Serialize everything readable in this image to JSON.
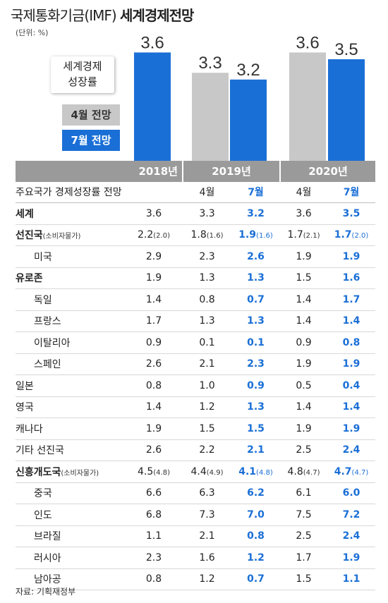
{
  "title": {
    "light": "국제통화기금(IMF)",
    "bold": "세계경제전망"
  },
  "unit": "(단위: %)",
  "callout": [
    "세계경제",
    "성장률"
  ],
  "legend": {
    "apr": "4월 전망",
    "jul": "7월 전망"
  },
  "colors": {
    "april": "#c8c8c8",
    "july": "#1a6fd6",
    "header": "#9a9a9a"
  },
  "chart_data": {
    "type": "bar",
    "categories": [
      "2018년",
      "2019년",
      "2020년"
    ],
    "series": [
      {
        "name": "4월 전망",
        "values": [
          null,
          3.3,
          3.6
        ]
      },
      {
        "name": "7월 전망",
        "values": [
          3.6,
          3.2,
          3.5
        ]
      }
    ],
    "labels": [
      "3.6",
      "3.3",
      "3.2",
      "3.6",
      "3.5"
    ]
  },
  "table": {
    "years": [
      "2018년",
      "2019년",
      "2020년"
    ],
    "sub_header": {
      "label": "주요국가 경제성장률 전망",
      "apr": "4월",
      "jul": "7월"
    },
    "rows": [
      {
        "name": "세계",
        "bold": true,
        "indent": false,
        "v": [
          "3.6",
          "3.3",
          "3.2",
          "3.6",
          "3.5"
        ]
      },
      {
        "name": "선진국",
        "note": "(소비자물가)",
        "bold": true,
        "indent": false,
        "v": [
          "2.2",
          "1.8",
          "1.9",
          "1.7",
          "1.7"
        ],
        "s": [
          "(2.0)",
          "(1.6)",
          "(1.6)",
          "(2.1)",
          "(2.0)"
        ]
      },
      {
        "name": "미국",
        "bold": false,
        "indent": true,
        "v": [
          "2.9",
          "2.3",
          "2.6",
          "1.9",
          "1.9"
        ]
      },
      {
        "name": "유로존",
        "bold": true,
        "indent": false,
        "v": [
          "1.9",
          "1.3",
          "1.3",
          "1.5",
          "1.6"
        ]
      },
      {
        "name": "독일",
        "bold": false,
        "indent": true,
        "v": [
          "1.4",
          "0.8",
          "0.7",
          "1.4",
          "1.7"
        ]
      },
      {
        "name": "프랑스",
        "bold": false,
        "indent": true,
        "v": [
          "1.7",
          "1.3",
          "1.3",
          "1.4",
          "1.4"
        ]
      },
      {
        "name": "이탈리아",
        "bold": false,
        "indent": true,
        "v": [
          "0.9",
          "0.1",
          "0.1",
          "0.9",
          "0.8"
        ]
      },
      {
        "name": "스페인",
        "bold": false,
        "indent": true,
        "v": [
          "2.6",
          "2.1",
          "2.3",
          "1.9",
          "1.9"
        ]
      },
      {
        "name": "일본",
        "bold": false,
        "indent": false,
        "v": [
          "0.8",
          "1.0",
          "0.9",
          "0.5",
          "0.4"
        ]
      },
      {
        "name": "영국",
        "bold": false,
        "indent": false,
        "v": [
          "1.4",
          "1.2",
          "1.3",
          "1.4",
          "1.4"
        ]
      },
      {
        "name": "캐나다",
        "bold": false,
        "indent": false,
        "v": [
          "1.9",
          "1.5",
          "1.5",
          "1.9",
          "1.9"
        ]
      },
      {
        "name": "기타 선진국",
        "bold": false,
        "indent": false,
        "v": [
          "2.6",
          "2.2",
          "2.1",
          "2.5",
          "2.4"
        ]
      },
      {
        "name": "신흥개도국",
        "note": "(소비자물가)",
        "bold": true,
        "indent": false,
        "v": [
          "4.5",
          "4.4",
          "4.1",
          "4.8",
          "4.7"
        ],
        "s": [
          "(4.8)",
          "(4.9)",
          "(4.8)",
          "(4.7)",
          "(4.7)"
        ]
      },
      {
        "name": "중국",
        "bold": false,
        "indent": true,
        "v": [
          "6.6",
          "6.3",
          "6.2",
          "6.1",
          "6.0"
        ]
      },
      {
        "name": "인도",
        "bold": false,
        "indent": true,
        "v": [
          "6.8",
          "7.3",
          "7.0",
          "7.5",
          "7.2"
        ]
      },
      {
        "name": "브라질",
        "bold": false,
        "indent": true,
        "v": [
          "1.1",
          "2.1",
          "0.8",
          "2.5",
          "2.4"
        ]
      },
      {
        "name": "러시아",
        "bold": false,
        "indent": true,
        "v": [
          "2.3",
          "1.6",
          "1.2",
          "1.7",
          "1.9"
        ]
      },
      {
        "name": "남아공",
        "bold": false,
        "indent": true,
        "v": [
          "0.8",
          "1.2",
          "0.7",
          "1.5",
          "1.1"
        ]
      }
    ]
  },
  "source": "자료: 기획재정부"
}
